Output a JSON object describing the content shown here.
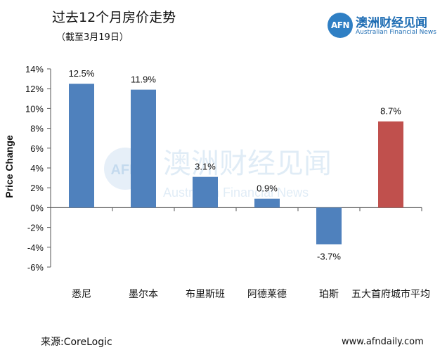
{
  "header": {
    "title": "过去12个月房价走势",
    "subtitle": "（截至3月19日）"
  },
  "brand": {
    "logo_text": "AFN",
    "name_cn": "澳洲财经见闻",
    "name_en": "Australian Financial News"
  },
  "watermark": {
    "logo_text": "AFN",
    "name_cn": "澳洲财经见闻",
    "name_en": "Australian Financial News"
  },
  "footer": {
    "source": "来源:CoreLogic",
    "url": "www.afndaily.com"
  },
  "colors": {
    "bar_default": "#4f81bd",
    "bar_highlight": "#c0504d"
  },
  "chart_data": {
    "type": "bar",
    "title": "过去12个月房价走势",
    "subtitle": "（截至3月19日）",
    "ylabel": "Price Change",
    "xlabel": "",
    "ylim": [
      -6,
      14
    ],
    "yticks": [
      14,
      12,
      10,
      8,
      6,
      4,
      2,
      0,
      -2,
      -4,
      -6
    ],
    "ytick_labels": [
      "14%",
      "12%",
      "10%",
      "8%",
      "6%",
      "4%",
      "2%",
      "0%",
      "-2%",
      "-4%",
      "-6%"
    ],
    "grid": false,
    "categories": [
      "悉尼",
      "墨尔本",
      "布里斯班",
      "阿德莱德",
      "珀斯",
      "五大首府城市平均"
    ],
    "values": [
      12.5,
      11.9,
      3.1,
      0.9,
      -3.7,
      8.7
    ],
    "data_labels": [
      "12.5%",
      "11.9%",
      "3.1%",
      "0.9%",
      "-3.7%",
      "8.7%"
    ],
    "bar_colors": [
      "#4f81bd",
      "#4f81bd",
      "#4f81bd",
      "#4f81bd",
      "#4f81bd",
      "#c0504d"
    ]
  }
}
